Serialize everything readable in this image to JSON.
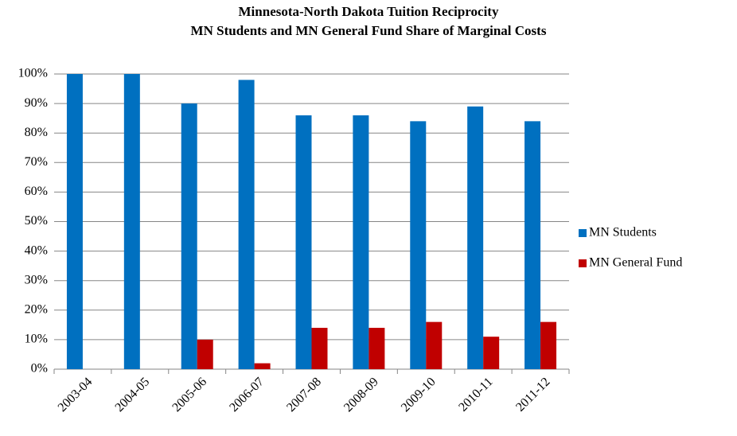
{
  "chart_data": {
    "type": "bar",
    "title": "Minnesota-North Dakota Tuition Reciprocity",
    "subtitle": "MN Students and MN General Fund Share of Marginal Costs",
    "categories": [
      "2003-04",
      "2004-05",
      "2005-06",
      "2006-07",
      "2007-08",
      "2008-09",
      "2009-10",
      "2010-11",
      "2011-12"
    ],
    "series": [
      {
        "name": "MN Students",
        "color": "#0070c0",
        "values": [
          100,
          100,
          90,
          98,
          86,
          86,
          84,
          89,
          84
        ]
      },
      {
        "name": "MN General Fund",
        "color": "#c00000",
        "values": [
          0,
          0,
          10,
          2,
          14,
          14,
          16,
          11,
          16
        ]
      }
    ],
    "ylim": [
      0,
      100
    ],
    "yticks": [
      {
        "value": 0,
        "label": "0%"
      },
      {
        "value": 10,
        "label": "10%"
      },
      {
        "value": 20,
        "label": "20%"
      },
      {
        "value": 30,
        "label": "30%"
      },
      {
        "value": 40,
        "label": "40%"
      },
      {
        "value": 50,
        "label": "50%"
      },
      {
        "value": 60,
        "label": "60%"
      },
      {
        "value": 70,
        "label": "70%"
      },
      {
        "value": 80,
        "label": "80%"
      },
      {
        "value": 90,
        "label": "90%"
      },
      {
        "value": 100,
        "label": "100%"
      }
    ],
    "grid": true,
    "legend": "right"
  }
}
